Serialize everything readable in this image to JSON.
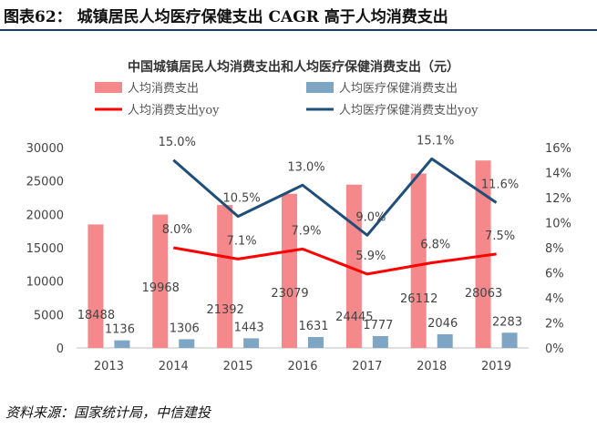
{
  "header": {
    "title": "图表62：  城镇居民人均医疗保健支出 CAGR 高于人均消费支出"
  },
  "footer": {
    "source": "资料来源：国家统计局，中信建投"
  },
  "colors": {
    "consumption_bar": "#f4888a",
    "health_bar": "#7ea6c4",
    "consumption_yoy_line": "#ff0000",
    "health_yoy_line": "#1f4e79",
    "header_rule": "#1a3c5e"
  },
  "chart_data": {
    "type": "bar",
    "title": "中国城镇居民人均消费支出和人均医疗保健消费支出（元）",
    "categories": [
      "2013",
      "2014",
      "2015",
      "2016",
      "2017",
      "2018",
      "2019"
    ],
    "series": [
      {
        "name": "人均消费支出",
        "type": "bar",
        "axis": "left",
        "values": [
          18488,
          19968,
          21392,
          23079,
          24445,
          26112,
          28063
        ]
      },
      {
        "name": "人均医疗保健消费支出",
        "type": "bar",
        "axis": "left",
        "values": [
          1136,
          1306,
          1443,
          1631,
          1777,
          2046,
          2283
        ]
      },
      {
        "name": "人均消费支出yoy",
        "type": "line",
        "axis": "right",
        "values": [
          null,
          8.0,
          7.1,
          7.9,
          5.9,
          6.8,
          7.5
        ],
        "labels": [
          "",
          "8.0%",
          "7.1%",
          "7.9%",
          "5.9%",
          "6.8%",
          "7.5%"
        ]
      },
      {
        "name": "人均医疗保健消费支出yoy",
        "type": "line",
        "axis": "right",
        "values": [
          null,
          15.0,
          10.5,
          13.0,
          9.0,
          15.1,
          11.6
        ],
        "labels": [
          "",
          "15.0%",
          "10.5%",
          "13.0%",
          "9.0%",
          "15.1%",
          "11.6%"
        ]
      }
    ],
    "left_axis": {
      "ylim": [
        0,
        30000
      ],
      "ticks": [
        "0",
        "5000",
        "10000",
        "15000",
        "20000",
        "25000",
        "30000"
      ]
    },
    "right_axis": {
      "ylim": [
        0,
        16
      ],
      "ticks": [
        "0%",
        "2%",
        "4%",
        "6%",
        "8%",
        "10%",
        "12%",
        "14%",
        "16%"
      ]
    },
    "grid": false,
    "legend_position": "top"
  }
}
